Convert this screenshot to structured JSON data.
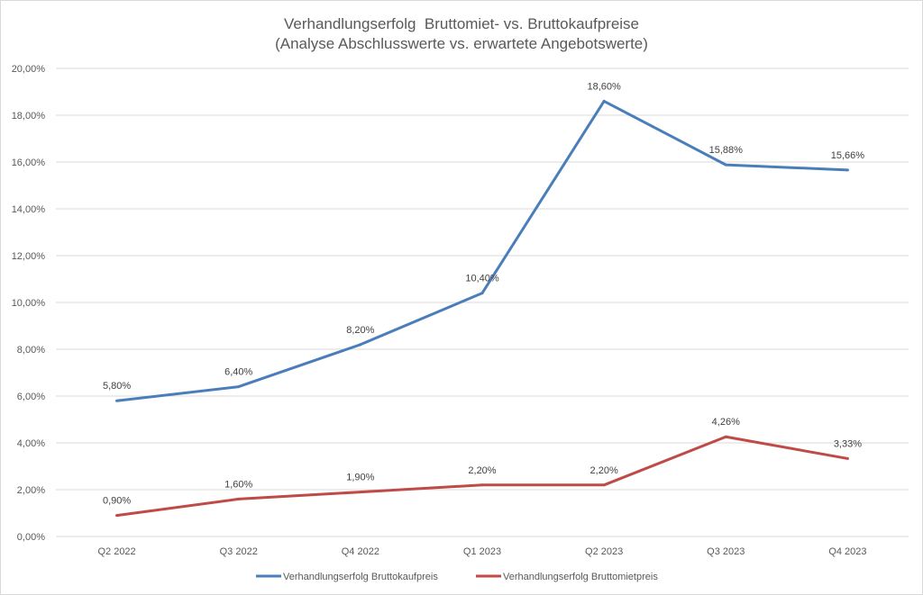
{
  "chart_data": {
    "type": "line",
    "title": "Verhandlungserfolg  Bruttomiet- vs. Bruttokaufpreise",
    "subtitle": "(Analyse Abschlusswerte vs. erwartete Angebotswerte)",
    "xlabel": "",
    "ylabel": "",
    "categories": [
      "Q2 2022",
      "Q3 2022",
      "Q4 2022",
      "Q1 2023",
      "Q2 2023",
      "Q3 2023",
      "Q4 2023"
    ],
    "ylim": [
      0,
      20
    ],
    "yticks": [
      0,
      2,
      4,
      6,
      8,
      10,
      12,
      14,
      16,
      18,
      20
    ],
    "ytick_labels": [
      "0,00%",
      "2,00%",
      "4,00%",
      "6,00%",
      "8,00%",
      "10,00%",
      "12,00%",
      "14,00%",
      "16,00%",
      "18,00%",
      "20,00%"
    ],
    "grid": true,
    "legend_position": "bottom",
    "series": [
      {
        "name": "Verhandlungserfolg Bruttokaufpreis",
        "color": "#4a7ebb",
        "values": [
          5.8,
          6.4,
          8.2,
          10.4,
          18.6,
          15.88,
          15.66
        ],
        "labels": [
          "5,80%",
          "6,40%",
          "8,20%",
          "10,40%",
          "18,60%",
          "15,88%",
          "15,66%"
        ]
      },
      {
        "name": "Verhandlungserfolg Bruttomietpreis",
        "color": "#be4b48",
        "values": [
          0.9,
          1.6,
          1.9,
          2.2,
          2.2,
          4.26,
          3.33
        ],
        "labels": [
          "0,90%",
          "1,60%",
          "1,90%",
          "2,20%",
          "2,20%",
          "4,26%",
          "3,33%"
        ]
      }
    ]
  }
}
